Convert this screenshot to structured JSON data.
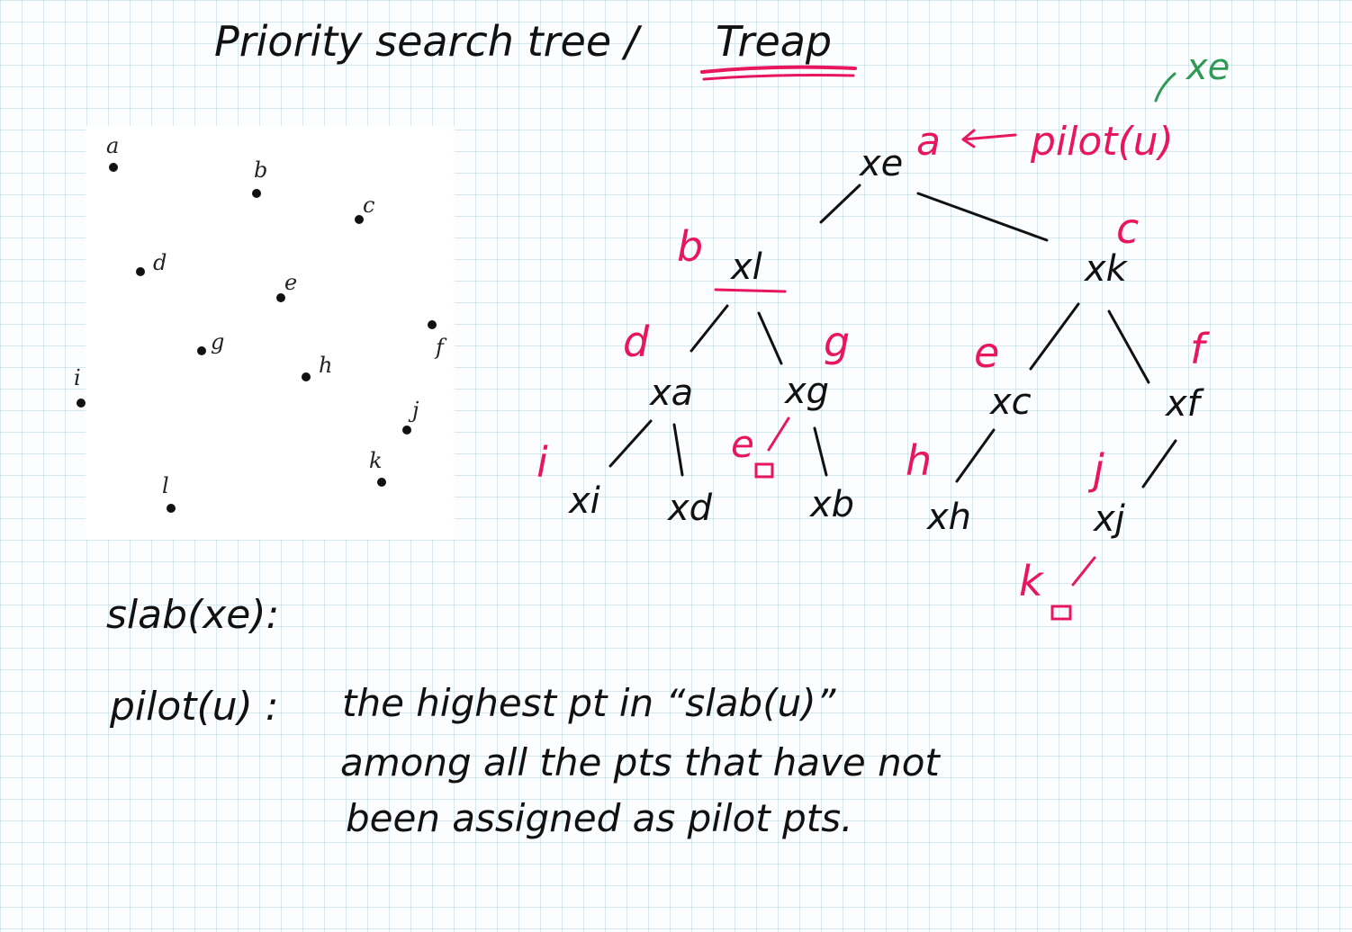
{
  "title": {
    "main": "Priority search tree /",
    "treap": "Treap"
  },
  "points": [
    {
      "label": "a"
    },
    {
      "label": "b"
    },
    {
      "label": "c"
    },
    {
      "label": "d"
    },
    {
      "label": "e"
    },
    {
      "label": "f"
    },
    {
      "label": "g"
    },
    {
      "label": "h"
    },
    {
      "label": "i"
    },
    {
      "label": "j"
    },
    {
      "label": "k"
    },
    {
      "label": "l"
    }
  ],
  "tree": {
    "root_pilot": "a",
    "pilot_note": "pilot(u)",
    "green_note": "xe",
    "nodes": [
      {
        "label": "xe"
      },
      {
        "label": "xl"
      },
      {
        "label": "xk"
      },
      {
        "label": "xa"
      },
      {
        "label": "xg"
      },
      {
        "label": "xc"
      },
      {
        "label": "xf"
      },
      {
        "label": "xi"
      },
      {
        "label": "xd"
      },
      {
        "label": "xb"
      },
      {
        "label": "xh"
      },
      {
        "label": "xj"
      }
    ],
    "pilots": [
      {
        "label": "b"
      },
      {
        "label": "c"
      },
      {
        "label": "d"
      },
      {
        "label": "g"
      },
      {
        "label": "e"
      },
      {
        "label": "f"
      },
      {
        "label": "i"
      },
      {
        "label": "e"
      },
      {
        "label": "h"
      },
      {
        "label": "j"
      },
      {
        "label": "k"
      }
    ]
  },
  "notes": {
    "slab": "slab(xe):",
    "pilot_def_label": "pilot(u) :",
    "pilot_def_line1": "the highest pt in “slab(u)”",
    "pilot_def_line2": "among all the pts that have not",
    "pilot_def_line3": "been assigned as pilot pts."
  },
  "colors": {
    "ink": "#111111",
    "pink": "#e8175d",
    "green": "#2e9a55"
  }
}
